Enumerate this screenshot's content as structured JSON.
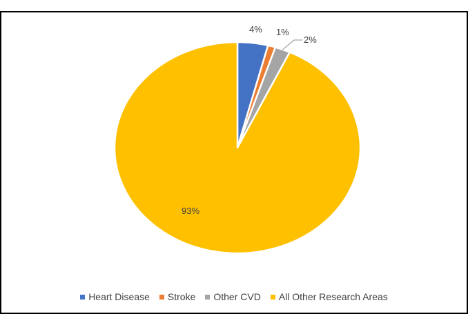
{
  "chart_data": {
    "type": "pie",
    "title": "",
    "slices": [
      {
        "label": "Heart Disease",
        "value": 4,
        "display": "4%",
        "color": "#4472C4"
      },
      {
        "label": "Stroke",
        "value": 1,
        "display": "1%",
        "color": "#ED7D31"
      },
      {
        "label": "Other CVD",
        "value": 2,
        "display": "2%",
        "color": "#A5A5A5"
      },
      {
        "label": "All Other Research Areas",
        "value": 93,
        "display": "93%",
        "color": "#FFC000"
      }
    ],
    "legend_position": "bottom"
  }
}
